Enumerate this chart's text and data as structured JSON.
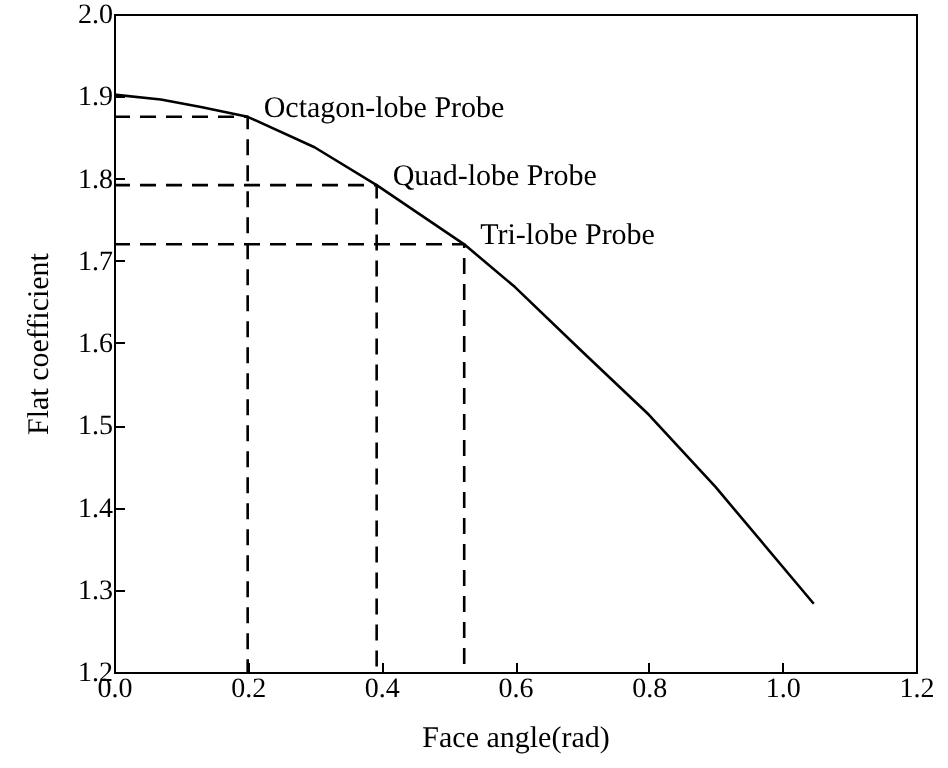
{
  "chart_data": {
    "type": "line",
    "xlabel": "Face angle(rad)",
    "ylabel": "Flat coefficient",
    "xlim": [
      0,
      1.2
    ],
    "ylim": [
      1.2,
      2.0
    ],
    "xticks": [
      {
        "value": 0,
        "label": "0.0"
      },
      0.2,
      0.4,
      0.6,
      0.8,
      {
        "value": 1.0,
        "label": "1.0"
      },
      1.2
    ],
    "yticks": [
      1.2,
      1.3,
      1.4,
      1.5,
      1.6,
      1.7,
      1.8,
      1.9,
      {
        "value": 2.0,
        "label": "2.0"
      }
    ],
    "grid": false,
    "series": [
      {
        "color": "#000000",
        "line_style": "solid",
        "x": [
          0,
          0.07,
          0.13,
          0.2,
          0.3,
          0.393,
          0.524,
          0.6,
          0.7,
          0.8,
          0.9,
          1.047
        ],
        "values": [
          1.902,
          1.896,
          1.887,
          1.875,
          1.838,
          1.792,
          1.72,
          1.668,
          1.59,
          1.513,
          1.425,
          1.283
        ]
      },
      {
        "color": "#000000",
        "line_style": "dashed",
        "x": [
          0,
          0.2,
          0.2
        ],
        "values": [
          1.875,
          1.875,
          1.2
        ]
      },
      {
        "color": "#000000",
        "line_style": "dashed",
        "x": [
          0,
          0.393,
          0.393
        ],
        "values": [
          1.792,
          1.792,
          1.2
        ]
      },
      {
        "color": "#000000",
        "line_style": "dashed",
        "x": [
          0,
          0.524,
          0.524
        ],
        "values": [
          1.72,
          1.72,
          1.2
        ]
      }
    ],
    "annotations": [
      {
        "text": "Octagon-lobe Probe",
        "x": 0.2,
        "y": 1.875
      },
      {
        "text": "Quad-lobe Probe",
        "x": 0.393,
        "y": 1.792
      },
      {
        "text": "Tri-lobe Probe",
        "x": 0.524,
        "y": 1.72
      }
    ]
  }
}
